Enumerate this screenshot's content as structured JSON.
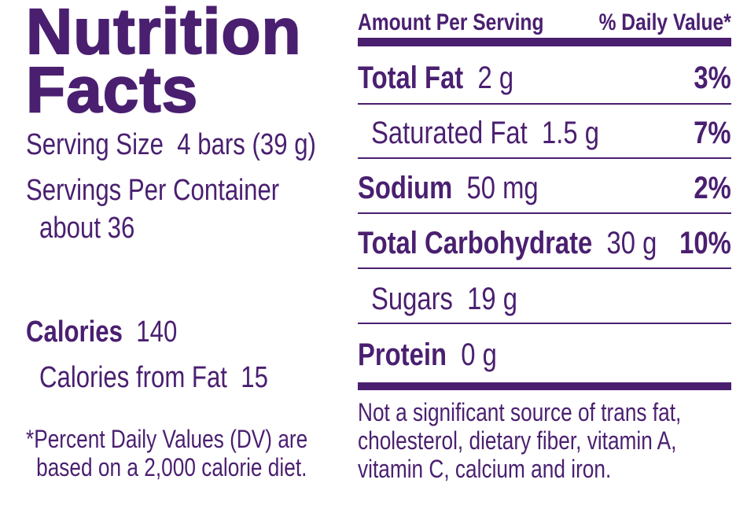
{
  "title": "Nutrition Facts",
  "serving": {
    "serving_size_label": "Serving Size",
    "serving_size": "4 bars (39 g)",
    "servings_label": "Servings Per Container",
    "servings": "about 36"
  },
  "calories": {
    "label": "Calories",
    "value": "140",
    "from_fat_label": "Calories from Fat",
    "from_fat": "15"
  },
  "footnote": "*Percent Daily Values (DV) are based on a 2,000 calorie diet.",
  "table": {
    "header": [
      "Amount Per Serving",
      "% Daily Value*"
    ],
    "rows": [
      [
        "Total Fat",
        "2 g",
        "3%"
      ],
      [
        "Saturated Fat",
        "1.5 g",
        "7%"
      ],
      [
        "Sodium",
        "50 mg",
        "2%"
      ],
      [
        "Total Carbohydrate",
        "30 g",
        "10%"
      ],
      [
        "Sugars",
        "19 g"
      ],
      [
        "Protein",
        "0 g"
      ]
    ]
  },
  "note": "Not a significant source of trans fat, cholesterol, dietary fiber, vitamin A, vitamin C, calcium and iron."
}
